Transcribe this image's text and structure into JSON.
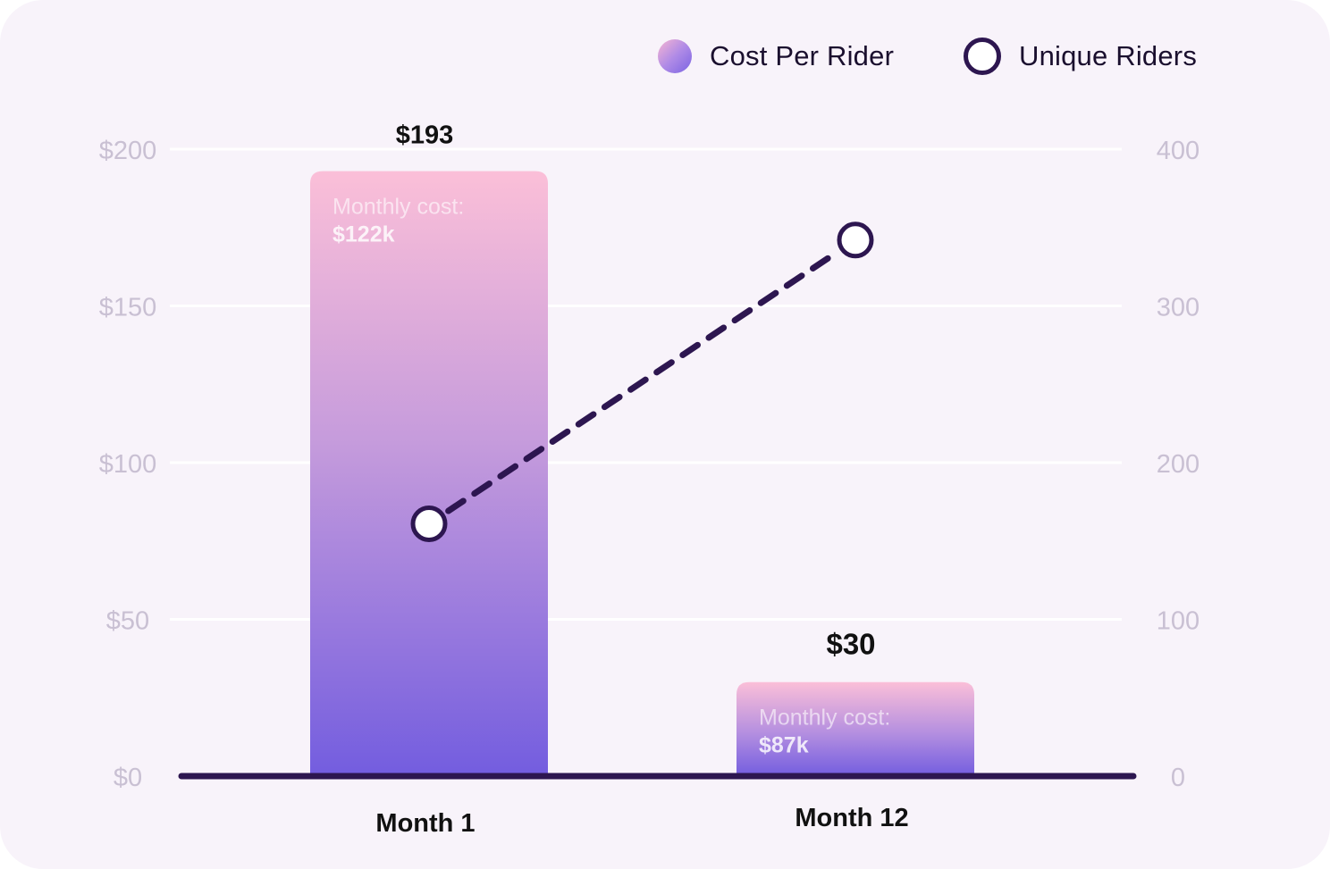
{
  "legend": {
    "cost_label": "Cost Per Rider",
    "riders_label": "Unique Riders",
    "cost_icon": "gradient-dot-icon",
    "riders_icon": "ring-icon"
  },
  "chart_data": {
    "type": "bar",
    "categories": [
      "Month 1",
      "Month 12"
    ],
    "series": [
      {
        "name": "Cost Per Rider",
        "axis": "left",
        "type": "bar",
        "values": [
          193,
          30
        ],
        "value_labels": [
          "$193",
          "$30"
        ],
        "inner_labels": [
          {
            "line1": "Monthly cost:",
            "line2": "$122k"
          },
          {
            "line1": "Monthly cost:",
            "line2": "$87k"
          }
        ]
      },
      {
        "name": "Unique Riders",
        "axis": "right",
        "type": "line",
        "style": "dashed",
        "values": [
          161,
          342
        ]
      }
    ],
    "y_left": {
      "min": 0,
      "max": 200,
      "ticks": [
        0,
        50,
        100,
        150,
        200
      ],
      "tick_labels": [
        "$0",
        "$50",
        "$100",
        "$150",
        "$200"
      ]
    },
    "y_right": {
      "min": 0,
      "max": 400,
      "ticks": [
        0,
        100,
        200,
        300,
        400
      ],
      "tick_labels": [
        "0",
        "100",
        "200",
        "300",
        "400"
      ]
    },
    "grid": true,
    "legend_position": "top-right",
    "colors": {
      "bar_top": "#fbbfd8",
      "bar_mid": "#b38ee0",
      "bar_bottom": "#735ddf",
      "line": "#2d1650",
      "baseline": "#2d1650",
      "tick_text": "#c9c0d3",
      "grid": "#ffffff"
    }
  }
}
